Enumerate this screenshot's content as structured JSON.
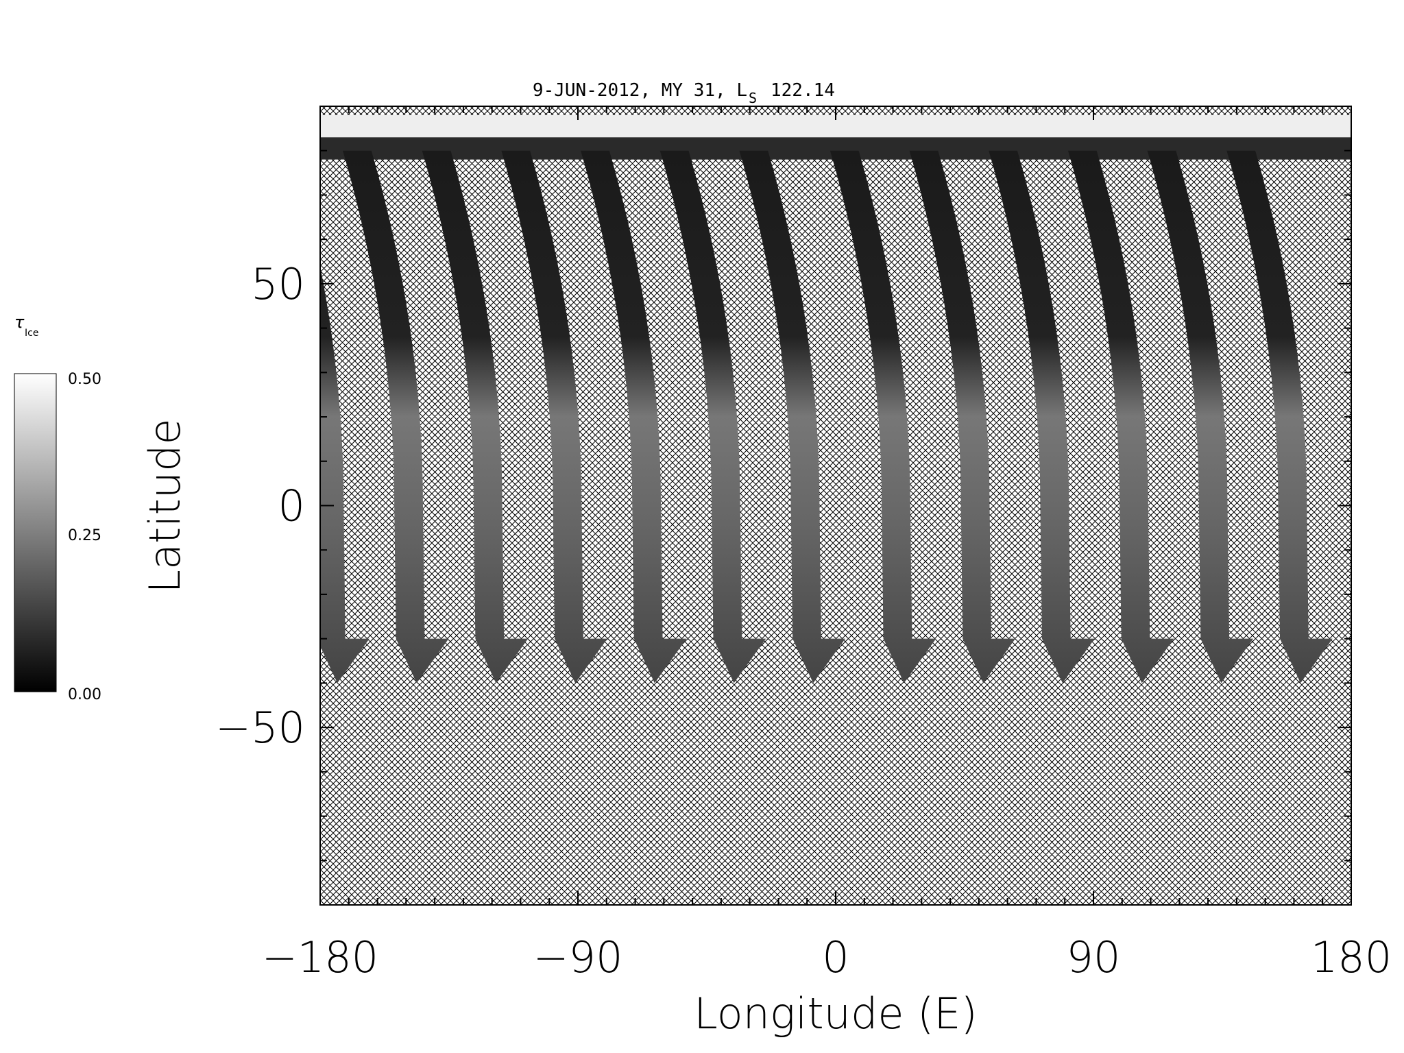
{
  "chart_data": {
    "type": "heatmap",
    "title": "9-JUN-2012, MY 31,  L",
    "title_sub": "S",
    "title_value": "122.14",
    "xlabel": "Longitude (E)",
    "ylabel": "Latitude",
    "xlim": [
      -180,
      180
    ],
    "ylim": [
      -90,
      90
    ],
    "xticks": [
      -180,
      -90,
      0,
      90,
      180
    ],
    "xtick_labels": [
      "−180",
      "−90",
      "0",
      "90",
      "180"
    ],
    "yticks": [
      50,
      0,
      -50
    ],
    "ytick_labels": [
      "50",
      "0",
      "−50"
    ],
    "colormap": "grayscale",
    "no_data_fill": "crosshatch",
    "colorbar": {
      "label": "τ",
      "label_sub": "Ice",
      "range": [
        0,
        0.5
      ],
      "ticks": [
        "0.50",
        "0.25",
        "0.00"
      ],
      "orientation": "vertical",
      "placement": "left"
    },
    "swath_count": 13,
    "swath_southern_limit_lat": -40
  }
}
